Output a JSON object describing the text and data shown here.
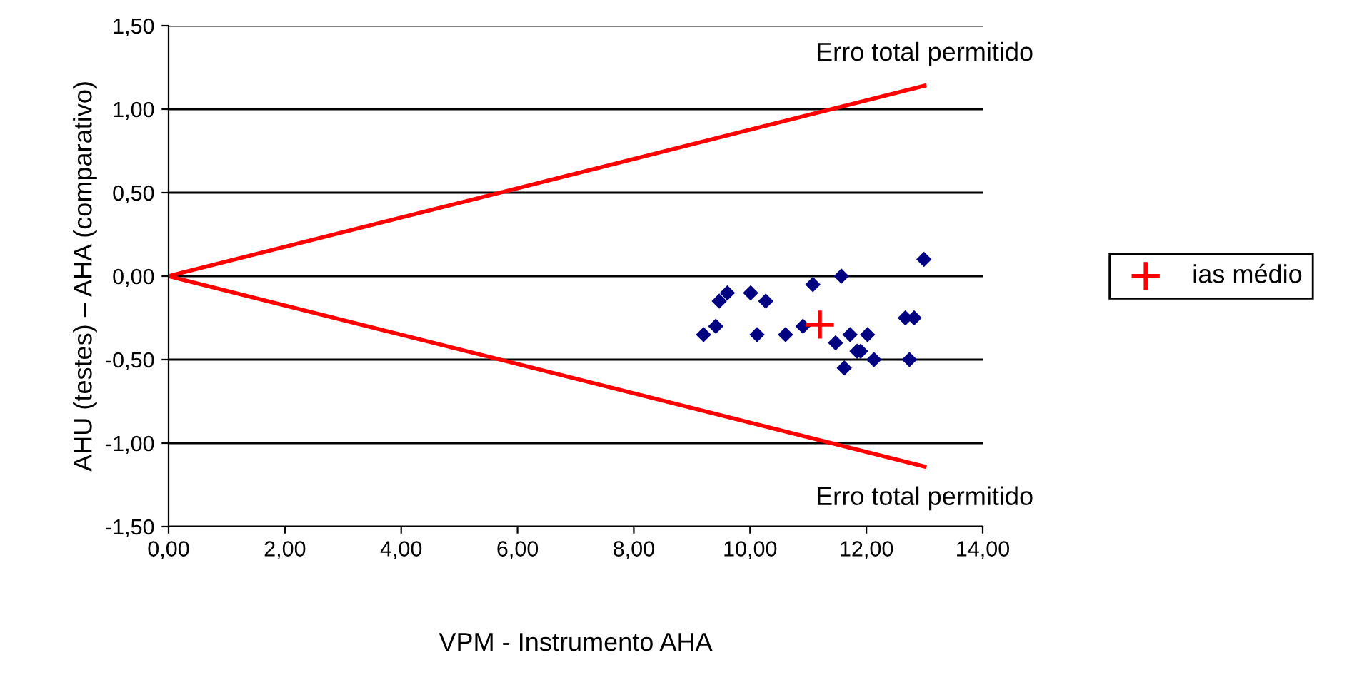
{
  "chart_data": {
    "type": "scatter",
    "xlabel": "VPM - Instrumento AHA",
    "ylabel": "AHU (testes) – AHA (comparativo)",
    "xlim": [
      0,
      14
    ],
    "ylim": [
      -1.5,
      1.5
    ],
    "xticks": [
      {
        "value": 0,
        "label": "0,00"
      },
      {
        "value": 2,
        "label": "2,00"
      },
      {
        "value": 4,
        "label": "4,00"
      },
      {
        "value": 6,
        "label": "6,00"
      },
      {
        "value": 8,
        "label": "8,00"
      },
      {
        "value": 10,
        "label": "10,00"
      },
      {
        "value": 12,
        "label": "12,00"
      },
      {
        "value": 14,
        "label": "14,00"
      }
    ],
    "yticks": [
      {
        "value": -1.5,
        "label": "-1,50"
      },
      {
        "value": -1,
        "label": "-1,00"
      },
      {
        "value": -0.5,
        "label": "-0,50"
      },
      {
        "value": 0,
        "label": "0,00"
      },
      {
        "value": 0.5,
        "label": "0,50"
      },
      {
        "value": 1,
        "label": "1,00"
      },
      {
        "value": 1.5,
        "label": "1,50"
      }
    ],
    "grid": "y",
    "legend": "right",
    "series": [
      {
        "marker": "diamond",
        "color": "#000080",
        "x": [
          9.2,
          9.41,
          9.47,
          9.61,
          10.01,
          10.27,
          10.12,
          10.61,
          10.91,
          11.08,
          11.57,
          12.99,
          11.47,
          11.72,
          12.02,
          11.84,
          11.9,
          12.13,
          11.62,
          12.67,
          12.82,
          12.74
        ],
        "values": [
          -0.35,
          -0.3,
          -0.15,
          -0.1,
          -0.1,
          -0.15,
          -0.35,
          -0.35,
          -0.3,
          -0.05,
          0.0,
          0.1,
          -0.4,
          -0.35,
          -0.35,
          -0.45,
          -0.45,
          -0.5,
          -0.55,
          -0.25,
          -0.25,
          -0.5
        ]
      },
      {
        "type": "scatter",
        "marker": "cross",
        "color": "#ff0000",
        "name": "ias médio",
        "x": [
          11.2
        ],
        "values": [
          -0.29
        ]
      },
      {
        "type": "line",
        "color": "#ff0000",
        "x": [
          0,
          13
        ],
        "values": [
          0,
          1.14
        ]
      },
      {
        "type": "line",
        "color": "#ff0000",
        "x": [
          0,
          13
        ],
        "values": [
          0,
          -1.14
        ]
      }
    ],
    "annotations": [
      {
        "text": "Erro total permitido",
        "x": 13,
        "y": 1.14
      },
      {
        "text": "Erro total permitido",
        "x": 13,
        "y": -1.14
      }
    ]
  }
}
